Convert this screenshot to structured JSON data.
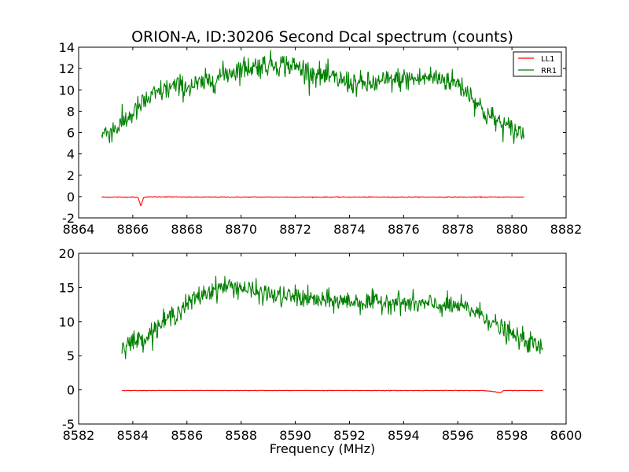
{
  "chart_data": [
    {
      "type": "line",
      "title": "ORION-A, ID:30206 Second Dcal spectrum (counts)",
      "xlabel": "",
      "ylabel": "",
      "xlim": [
        8864,
        8882
      ],
      "ylim": [
        -2,
        14
      ],
      "xticks": [
        8864,
        8866,
        8868,
        8870,
        8872,
        8874,
        8876,
        8878,
        8880,
        8882
      ],
      "yticks": [
        -2,
        0,
        2,
        4,
        6,
        8,
        10,
        12,
        14
      ],
      "legend_position": "top-right",
      "series": [
        {
          "name": "LL1",
          "color": "#ff0000",
          "x": [
            8864.85,
            8866.0,
            8866.2,
            8866.3,
            8866.4,
            8867.0,
            8868.0,
            8869.0,
            8870.0,
            8871.0,
            8872.0,
            8873.0,
            8874.0,
            8875.0,
            8876.0,
            8877.0,
            8878.0,
            8879.0,
            8880.0,
            8880.45
          ],
          "y": [
            -0.05,
            -0.05,
            -0.1,
            -0.9,
            -0.05,
            -0.02,
            -0.05,
            -0.05,
            -0.05,
            -0.05,
            -0.05,
            -0.05,
            -0.05,
            -0.05,
            -0.05,
            -0.05,
            -0.05,
            -0.05,
            -0.05,
            -0.05
          ]
        },
        {
          "name": "RR1",
          "color": "#008000",
          "x": [
            8864.85,
            8865.5,
            8866.0,
            8866.5,
            8867.0,
            8867.5,
            8868.0,
            8868.5,
            8869.0,
            8869.5,
            8870.0,
            8870.5,
            8871.0,
            8871.5,
            8872.0,
            8872.5,
            8873.0,
            8873.5,
            8874.0,
            8874.5,
            8875.0,
            8875.5,
            8876.0,
            8876.5,
            8877.0,
            8877.5,
            8878.0,
            8878.5,
            8879.0,
            8879.5,
            8880.0,
            8880.45
          ],
          "y": [
            5.8,
            6.6,
            7.8,
            9.0,
            9.8,
            10.3,
            10.3,
            10.5,
            11.0,
            11.6,
            12.0,
            12.2,
            12.4,
            12.4,
            12.2,
            11.7,
            11.3,
            11.0,
            10.7,
            10.5,
            10.6,
            10.9,
            11.0,
            11.0,
            11.2,
            11.0,
            10.6,
            9.5,
            7.8,
            7.0,
            6.2,
            6.0
          ]
        }
      ]
    },
    {
      "type": "line",
      "title": "",
      "xlabel": "Frequency (MHz)",
      "ylabel": "",
      "xlim": [
        8582,
        8600
      ],
      "ylim": [
        -5,
        20
      ],
      "xticks": [
        8582,
        8584,
        8586,
        8588,
        8590,
        8592,
        8594,
        8596,
        8598,
        8600
      ],
      "yticks": [
        -5,
        0,
        5,
        10,
        15,
        20
      ],
      "series": [
        {
          "color": "#ff0000",
          "x": [
            8583.6,
            8585.0,
            8586.0,
            8587.0,
            8588.0,
            8589.0,
            8590.0,
            8591.0,
            8592.0,
            8593.0,
            8594.0,
            8595.0,
            8596.0,
            8597.0,
            8597.6,
            8597.7,
            8598.0,
            8599.15
          ],
          "y": [
            -0.1,
            -0.1,
            -0.1,
            -0.1,
            -0.1,
            -0.1,
            -0.1,
            -0.1,
            -0.1,
            -0.1,
            -0.1,
            -0.1,
            -0.1,
            -0.1,
            -0.4,
            -0.1,
            -0.1,
            -0.1
          ]
        },
        {
          "color": "#008000",
          "x": [
            8583.6,
            8584.0,
            8584.5,
            8585.0,
            8585.5,
            8586.0,
            8586.5,
            8587.0,
            8587.5,
            8588.0,
            8588.5,
            8589.0,
            8589.5,
            8590.0,
            8590.5,
            8591.0,
            8591.5,
            8592.0,
            8592.5,
            8593.0,
            8593.5,
            8594.0,
            8594.5,
            8595.0,
            8595.5,
            8596.0,
            8596.5,
            8597.0,
            8597.5,
            8598.0,
            8598.5,
            8599.15
          ],
          "y": [
            6.5,
            7.0,
            7.8,
            9.5,
            11.0,
            12.5,
            13.8,
            14.8,
            15.2,
            15.0,
            14.3,
            14.0,
            13.6,
            13.7,
            13.3,
            13.0,
            13.0,
            13.0,
            12.8,
            12.8,
            13.0,
            12.7,
            12.5,
            12.5,
            12.3,
            12.2,
            11.7,
            10.8,
            9.2,
            8.0,
            7.2,
            6.0
          ]
        }
      ]
    }
  ]
}
